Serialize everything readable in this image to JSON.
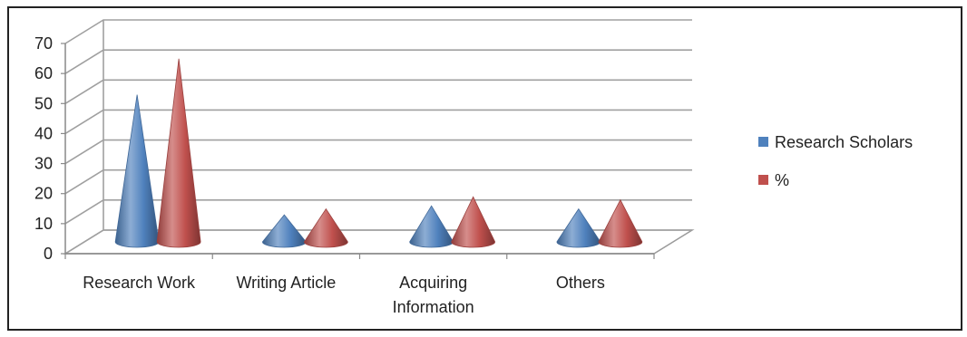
{
  "chart_data": {
    "type": "bar",
    "style": "3d-cone",
    "categories": [
      "Research Work",
      "Writing Article",
      "Acquiring Information",
      "Others"
    ],
    "category_lines": [
      [
        "Research Work"
      ],
      [
        "Writing Article"
      ],
      [
        "Acquiring",
        "Information"
      ],
      [
        "Others"
      ]
    ],
    "series": [
      {
        "name": "Research Scholars",
        "values": [
          49,
          9,
          12,
          11
        ],
        "color": "#4f81bd"
      },
      {
        "name": "%",
        "values": [
          61,
          11,
          15,
          14
        ],
        "color": "#c0504d"
      }
    ],
    "ylim": [
      0,
      70
    ],
    "yticks": [
      0,
      10,
      20,
      30,
      40,
      50,
      60,
      70
    ],
    "grid": true,
    "legend_position": "right"
  }
}
